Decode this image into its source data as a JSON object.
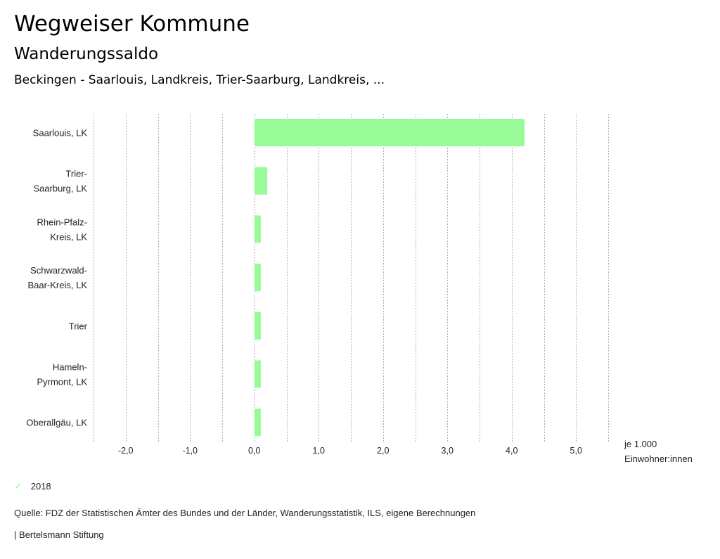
{
  "header": {
    "title": "Wegweiser Kommune",
    "subtitle": "Wanderungssaldo",
    "selection": "Beckingen - Saarlouis, Landkreis, Trier-Saarburg, Landkreis, ..."
  },
  "chart_data": {
    "type": "bar",
    "orientation": "horizontal",
    "categories": [
      [
        "Saarlouis, LK"
      ],
      [
        "Trier-",
        "Saarburg, LK"
      ],
      [
        "Rhein-Pfalz-",
        "Kreis, LK"
      ],
      [
        "Schwarzwald-",
        "Baar-Kreis, LK"
      ],
      [
        "Trier"
      ],
      [
        "Hameln-",
        "Pyrmont, LK"
      ],
      [
        "Oberallgäu, LK"
      ]
    ],
    "series": [
      {
        "name": "2018",
        "color": "#98fb98",
        "values": [
          4.2,
          0.2,
          0.1,
          0.1,
          0.1,
          0.1,
          0.1
        ]
      }
    ],
    "xlim": [
      -2.5,
      5.5
    ],
    "x_ticks": [
      -2,
      -1,
      0,
      1,
      2,
      3,
      4,
      5
    ],
    "x_tick_labels": [
      "-2,0",
      "-1,0",
      "0,0",
      "1,0",
      "2,0",
      "3,0",
      "4,0",
      "5,0"
    ],
    "grid_step": 0.5,
    "grid": true,
    "xlabel": [
      "je 1.000",
      "Einwohner:innen"
    ],
    "legend_position": "bottom-left"
  },
  "legend": {
    "label": "2018",
    "icon": "check-icon",
    "color": "#98fb98"
  },
  "footer": {
    "source": "Quelle: FDZ der Statistischen Ämter des Bundes und der Länder, Wanderungsstatistik, ILS, eigene Berechnungen",
    "brand": "| Bertelsmann Stiftung"
  }
}
